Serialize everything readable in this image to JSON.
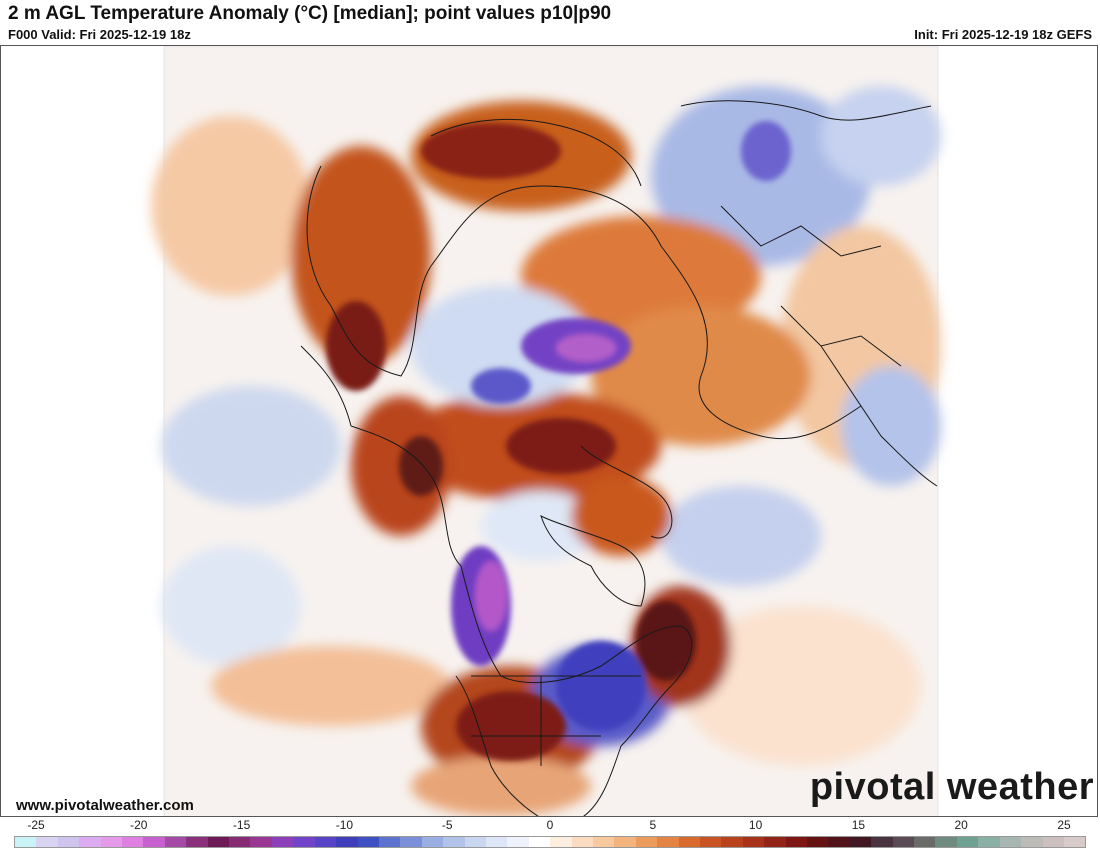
{
  "header": {
    "title": "2 m AGL Temperature Anomaly (°C) [median]; point values p10|p90",
    "valid": "F000 Valid: Fri 2025-12-19 18z",
    "init": "Init: Fri 2025-12-19 18z GEFS"
  },
  "footer": {
    "site_url": "www.pivotalweather.com",
    "brand_prefix": "pivot",
    "brand_suffix": "al weather"
  },
  "colors": {
    "border": "#1a1a1a",
    "ocean_bg": "#f4f4f4"
  },
  "colorbar": {
    "unit": "°C",
    "tick_labels": [
      "-25",
      "-20",
      "-15",
      "-10",
      "-5",
      "0",
      "5",
      "10",
      "15",
      "20",
      "25"
    ],
    "swatches": [
      "#c9f3f7",
      "#d9d3f2",
      "#d0c4ef",
      "#dcaaf0",
      "#e49ae9",
      "#e07fe2",
      "#c85fce",
      "#a44aa6",
      "#8a2f7a",
      "#6e1a57",
      "#862a74",
      "#9a3594",
      "#8c3fb9",
      "#7043c8",
      "#5643c8",
      "#3f3fbe",
      "#3d4fc1",
      "#5b72cf",
      "#7b8ed8",
      "#9aaee3",
      "#b2c3ea",
      "#c9d6f0",
      "#dde6f6",
      "#eef2fa",
      "#ffffff",
      "#fdeee0",
      "#fbdcc0",
      "#f8c89e",
      "#f3b37d",
      "#eb9c5a",
      "#e38444",
      "#d86a2e",
      "#c95322",
      "#b8421b",
      "#a73219",
      "#942317",
      "#7e1614",
      "#651212",
      "#511318",
      "#3f1823",
      "#4a3340",
      "#5a4a55",
      "#6a6a68",
      "#6f8a7e",
      "#6ea192",
      "#8ab0a6",
      "#a7b6b0",
      "#bcbbb6",
      "#cbc0bd",
      "#d8cac8"
    ]
  }
}
